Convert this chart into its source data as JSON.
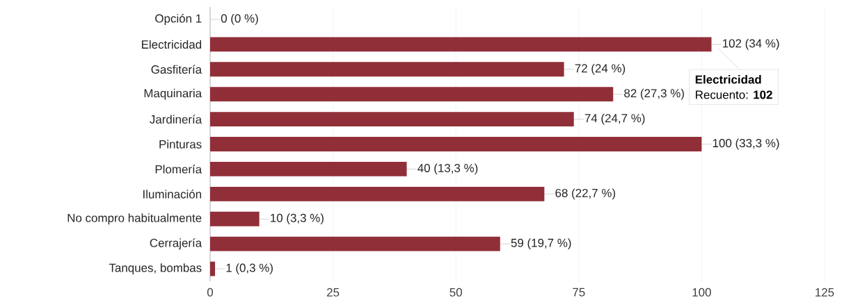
{
  "chart_data": {
    "type": "bar",
    "orientation": "horizontal",
    "categories": [
      "Opción 1",
      "Electricidad",
      "Gasfitería",
      "Maquinaria",
      "Jardinería",
      "Pinturas",
      "Plomería",
      "Iluminación",
      "No compro habitualmente",
      "Cerrajería",
      "Tanques, bombas"
    ],
    "values": [
      0,
      102,
      72,
      82,
      74,
      100,
      40,
      68,
      10,
      59,
      1
    ],
    "value_labels": [
      "0 (0 %)",
      "102 (34 %)",
      "72 (24 %)",
      "82 (27,3 %)",
      "74 (24,7 %)",
      "100 (33,3 %)",
      "40 (13,3 %)",
      "68 (22,7 %)",
      "10 (3,3 %)",
      "59 (19,7 %)",
      "1 (0,3 %)"
    ],
    "color": "#912f38",
    "xlim": [
      0,
      125
    ],
    "xticks": [
      0,
      25,
      50,
      75,
      100,
      125
    ],
    "grid": "x",
    "annotations": [
      "Electricidad",
      "Recuento: **102**"
    ]
  }
}
